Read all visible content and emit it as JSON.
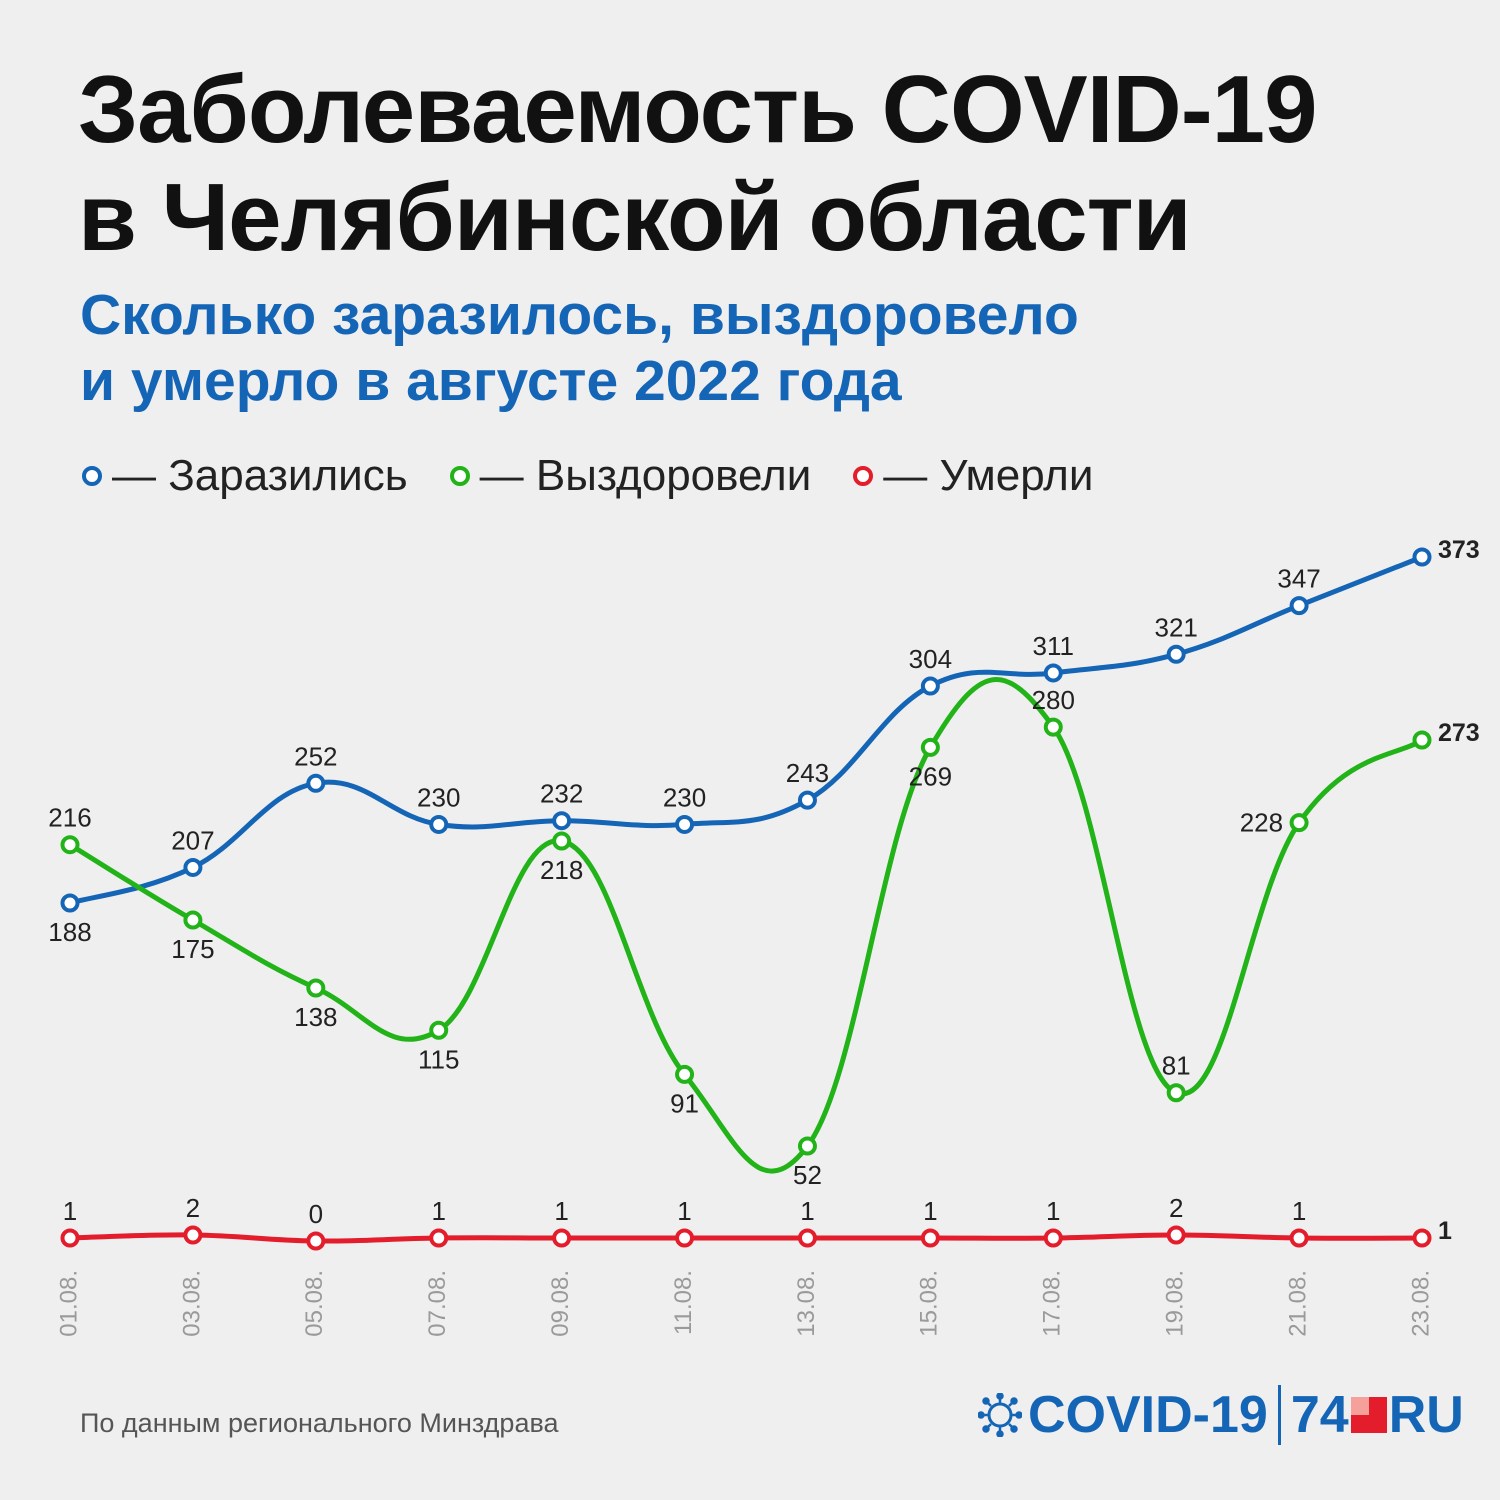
{
  "header": {
    "title_line1": "Заболеваемость COVID-19",
    "title_line2": "в Челябинской области",
    "subtitle_line1": "Сколько заразилось, выздоровело",
    "subtitle_line2": "и умерло в августе 2022 года"
  },
  "legend": [
    {
      "label": "— Заразились",
      "color": "#1565b7"
    },
    {
      "label": "— Выздоровели",
      "color": "#22b319"
    },
    {
      "label": "— Умерли",
      "color": "#e31d2b"
    }
  ],
  "footer": {
    "source": "По данным регионального Минздрава",
    "brand_covid": "COVID-19",
    "brand_74": "74",
    "brand_ru": "RU"
  },
  "chart_data": {
    "type": "line",
    "categories": [
      "01.08.",
      "03.08.",
      "05.08.",
      "07.08.",
      "09.08.",
      "11.08.",
      "13.08.",
      "15.08.",
      "17.08.",
      "19.08.",
      "21.08.",
      "23.08."
    ],
    "series": [
      {
        "name": "Заразились",
        "color": "#1565b7",
        "values": [
          188,
          207,
          252,
          230,
          232,
          230,
          243,
          304,
          311,
          321,
          347,
          373
        ]
      },
      {
        "name": "Выздоровели",
        "color": "#22b319",
        "values": [
          216,
          175,
          138,
          115,
          218,
          91,
          52,
          269,
          280,
          81,
          228,
          273
        ]
      },
      {
        "name": "Умерли",
        "color": "#e31d2b",
        "values": [
          1,
          2,
          0,
          1,
          1,
          1,
          1,
          1,
          1,
          2,
          1,
          1
        ]
      }
    ],
    "xlabel": "",
    "ylabel": "",
    "grid": false,
    "legend_position": "top-left"
  }
}
